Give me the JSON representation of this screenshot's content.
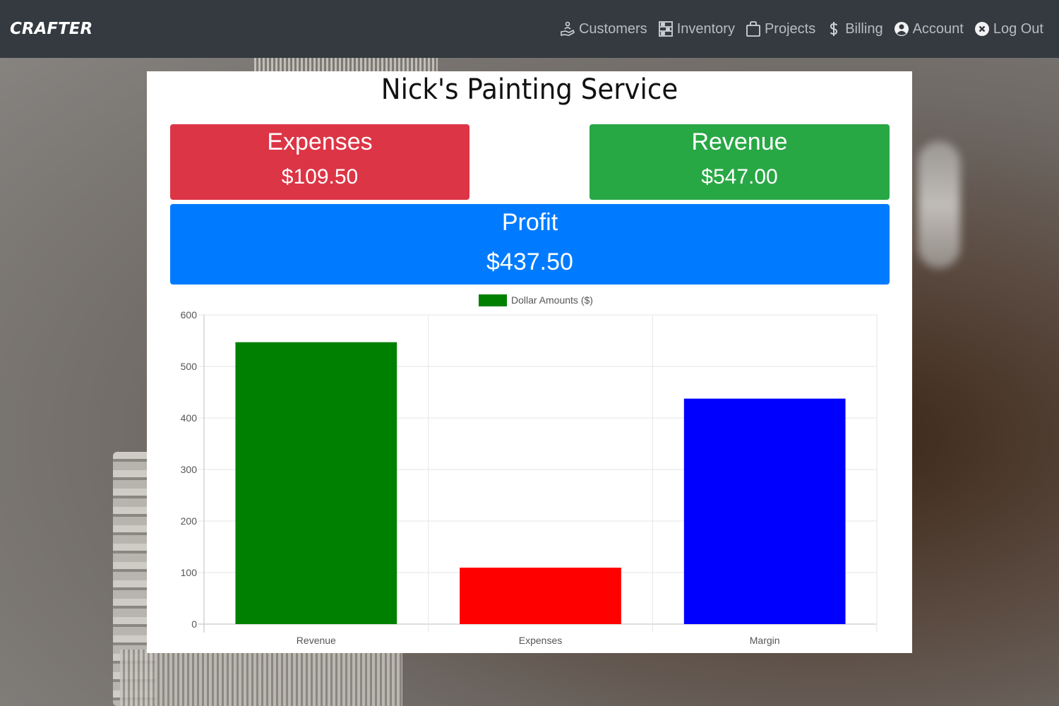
{
  "navbar": {
    "brand": "CRAFTER",
    "links": [
      {
        "label": "Customers",
        "icon": "customers-icon"
      },
      {
        "label": "Inventory",
        "icon": "inventory-icon"
      },
      {
        "label": "Projects",
        "icon": "projects-icon"
      },
      {
        "label": "Billing",
        "icon": "dollar-icon"
      },
      {
        "label": "Account",
        "icon": "account-icon"
      },
      {
        "label": "Log Out",
        "icon": "close-circle-icon"
      }
    ]
  },
  "page": {
    "title": "Nick's Painting Service"
  },
  "stats": {
    "expenses": {
      "label": "Expenses",
      "value": "$109.50",
      "color": "#dc3545"
    },
    "revenue": {
      "label": "Revenue",
      "value": "$547.00",
      "color": "#28a745"
    },
    "profit": {
      "label": "Profit",
      "value": "$437.50",
      "color": "#007bff"
    }
  },
  "chart_data": {
    "type": "bar",
    "categories": [
      "Revenue",
      "Expenses",
      "Margin"
    ],
    "series": [
      {
        "name": "Dollar Amounts ($)",
        "values": [
          547,
          109.5,
          437.5
        ],
        "colors": [
          "#008000",
          "#ff0000",
          "#0000ff"
        ]
      }
    ],
    "ylim": [
      0,
      600
    ],
    "yticks": [
      0,
      100,
      200,
      300,
      400,
      500,
      600
    ],
    "legend": "top-center",
    "grid": true
  }
}
